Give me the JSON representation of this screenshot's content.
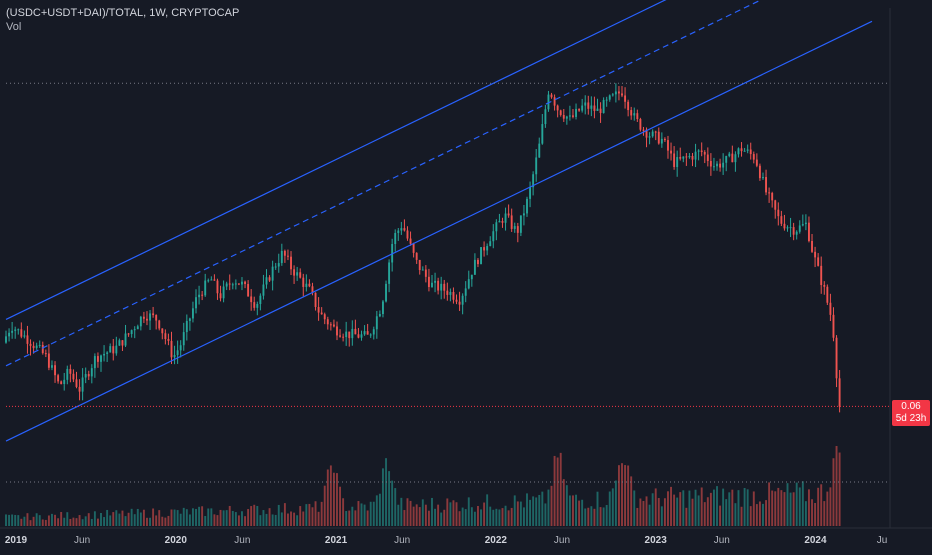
{
  "header": {
    "symbol_line": "(USDC+USDT+DAI)/TOTAL, 1W, CRYPTOCAP",
    "volume_label": "Vol"
  },
  "price_badge": {
    "value": "0.06",
    "countdown": "5d 23h"
  },
  "colors": {
    "background": "#161a25",
    "up": "#26a69a",
    "down": "#ef5350",
    "channel": "#2962ff",
    "current_price_line": "#f23645",
    "grid_dots": "#787b86"
  },
  "chart_data": {
    "type": "candlestick",
    "interval": "1W",
    "x_tick_labels": [
      "2019",
      "Jun",
      "2020",
      "Jun",
      "2021",
      "Jun",
      "2022",
      "Jun",
      "2023",
      "Jun",
      "2024",
      "Ju"
    ],
    "x_tick_dates": [
      "2019-01-01",
      "2019-06-01",
      "2020-01-01",
      "2020-06-01",
      "2021-01-01",
      "2021-06-01",
      "2022-01-01",
      "2022-06-01",
      "2023-01-01",
      "2023-06-01",
      "2024-01-01",
      "2024-06-01"
    ],
    "ylim": [
      0.038,
      0.19
    ],
    "last_price": 0.06,
    "price_path": [
      [
        "2019-01-01",
        0.082
      ],
      [
        "2019-01-20",
        0.088
      ],
      [
        "2019-03-01",
        0.083
      ],
      [
        "2019-04-10",
        0.077
      ],
      [
        "2019-05-10",
        0.067
      ],
      [
        "2019-06-01",
        0.072
      ],
      [
        "2019-06-25",
        0.066
      ],
      [
        "2019-08-01",
        0.077
      ],
      [
        "2019-09-15",
        0.08
      ],
      [
        "2019-10-15",
        0.085
      ],
      [
        "2019-11-20",
        0.092
      ],
      [
        "2019-12-20",
        0.09
      ],
      [
        "2020-01-25",
        0.077
      ],
      [
        "2020-02-10",
        0.081
      ],
      [
        "2020-03-20",
        0.098
      ],
      [
        "2020-04-20",
        0.104
      ],
      [
        "2020-05-10",
        0.098
      ],
      [
        "2020-06-10",
        0.104
      ],
      [
        "2020-07-01",
        0.102
      ],
      [
        "2020-08-01",
        0.095
      ],
      [
        "2020-09-10",
        0.108
      ],
      [
        "2020-10-01",
        0.113
      ],
      [
        "2020-10-20",
        0.108
      ],
      [
        "2020-12-01",
        0.1
      ],
      [
        "2020-12-25",
        0.092
      ],
      [
        "2021-01-25",
        0.087
      ],
      [
        "2021-02-25",
        0.085
      ],
      [
        "2021-04-15",
        0.084
      ],
      [
        "2021-05-15",
        0.095
      ],
      [
        "2021-06-10",
        0.118
      ],
      [
        "2021-07-01",
        0.123
      ],
      [
        "2021-08-01",
        0.11
      ],
      [
        "2021-09-05",
        0.102
      ],
      [
        "2021-10-10",
        0.1
      ],
      [
        "2021-11-10",
        0.097
      ],
      [
        "2021-12-10",
        0.108
      ],
      [
        "2022-01-15",
        0.118
      ],
      [
        "2022-02-20",
        0.126
      ],
      [
        "2022-03-20",
        0.12
      ],
      [
        "2022-04-15",
        0.132
      ],
      [
        "2022-05-10",
        0.15
      ],
      [
        "2022-06-01",
        0.17
      ],
      [
        "2022-06-20",
        0.163
      ],
      [
        "2022-07-20",
        0.159
      ],
      [
        "2022-08-20",
        0.164
      ],
      [
        "2022-09-20",
        0.162
      ],
      [
        "2022-10-20",
        0.166
      ],
      [
        "2022-11-15",
        0.169
      ],
      [
        "2022-12-15",
        0.159
      ],
      [
        "2023-01-15",
        0.154
      ],
      [
        "2023-02-15",
        0.152
      ],
      [
        "2023-03-15",
        0.144
      ],
      [
        "2023-04-15",
        0.146
      ],
      [
        "2023-05-15",
        0.148
      ],
      [
        "2023-06-15",
        0.143
      ],
      [
        "2023-07-15",
        0.145
      ],
      [
        "2023-08-15",
        0.149
      ],
      [
        "2023-09-15",
        0.146
      ],
      [
        "2023-10-10",
        0.134
      ],
      [
        "2023-11-10",
        0.124
      ],
      [
        "2023-12-15",
        0.121
      ],
      [
        "2024-01-10",
        0.123
      ],
      [
        "2024-01-25",
        0.113
      ],
      [
        "2024-02-20",
        0.1
      ],
      [
        "2024-03-10",
        0.089
      ],
      [
        "2024-03-25",
        0.06
      ]
    ],
    "channel": {
      "upper": [
        [
          "2019-01-01",
          0.09
        ],
        [
          "2024-06-01",
          0.235
        ]
      ],
      "middle": [
        [
          "2019-01-01",
          0.074
        ],
        [
          "2024-06-01",
          0.219
        ]
      ],
      "lower": [
        [
          "2019-01-01",
          0.048
        ],
        [
          "2024-06-01",
          0.193
        ]
      ],
      "line_style": {
        "upper": "solid",
        "middle": "dashed",
        "lower": "solid"
      }
    },
    "volume": {
      "label": "Vol",
      "relative_peak": 1.0,
      "highlighted_spikes": [
        "2021-01-15",
        "2021-05-20",
        "2022-06-15",
        "2022-11-10",
        "2024-03-15"
      ]
    },
    "grid": false,
    "crosshair_dotted_lines": true
  }
}
